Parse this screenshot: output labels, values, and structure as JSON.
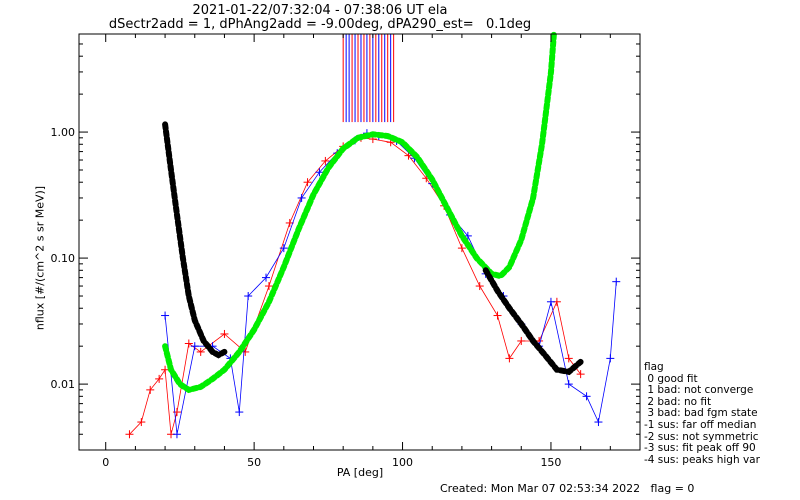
{
  "title_line1": "2021-01-22/07:32:04 - 07:38:06 UT ela",
  "title_line2": "dSectr2add = 1, dPhAng2add = -9.00deg, dPA290_est=   0.1deg",
  "footer": "Created: Mon Mar 07 02:53:34 2022   flag = 0",
  "legend": {
    "title": "flag",
    "items": [
      " 0 good fit",
      " 1 bad: not converge",
      " 2 bad: no fit",
      " 3 bad: bad fgm state",
      "-1 sus: far off median",
      "-2 sus: not symmetric",
      "-3 sus: fit peak off 90",
      "-4 sus: peaks high var"
    ]
  },
  "colors": {
    "series_a": "#ff0000",
    "series_b": "#0000ff",
    "fit_green": "#00ee00",
    "fit_black": "#000000"
  },
  "chart_data": {
    "type": "line",
    "xlabel": "PA [deg]",
    "ylabel": "nflux [#/(cm^2 s sr MeV)]",
    "xlim": [
      -9,
      180
    ],
    "ylim": [
      0.003,
      6.0
    ],
    "yscale": "log",
    "grid": false,
    "xticks": [
      {
        "value": 0,
        "label": "0"
      },
      {
        "value": 50,
        "label": "50"
      },
      {
        "value": 100,
        "label": "100"
      },
      {
        "value": 150,
        "label": "150"
      }
    ],
    "yticks": [
      {
        "value": 0.01,
        "label": "0.01"
      },
      {
        "value": 0.1,
        "label": "0.10"
      },
      {
        "value": 1.0,
        "label": "1.00"
      }
    ],
    "series": [
      {
        "color": "red",
        "points": [
          [
            8,
            0.004
          ],
          [
            12,
            0.005
          ],
          [
            15,
            0.009
          ],
          [
            18,
            0.011
          ],
          [
            20,
            0.013
          ],
          [
            22,
            0.004
          ],
          [
            24,
            0.006
          ],
          [
            28,
            0.021
          ],
          [
            32,
            0.018
          ],
          [
            40,
            0.025
          ],
          [
            47,
            0.018
          ],
          [
            55,
            0.06
          ],
          [
            62,
            0.19
          ],
          [
            68,
            0.4
          ],
          [
            74,
            0.59
          ],
          [
            80,
            0.77
          ],
          [
            86,
            0.9
          ],
          [
            90,
            0.88
          ],
          [
            96,
            0.83
          ],
          [
            102,
            0.65
          ],
          [
            108,
            0.43
          ],
          [
            114,
            0.26
          ],
          [
            120,
            0.12
          ],
          [
            126,
            0.06
          ],
          [
            132,
            0.035
          ],
          [
            136,
            0.016
          ],
          [
            140,
            0.022
          ],
          [
            146,
            0.022
          ],
          [
            152,
            0.045
          ],
          [
            156,
            0.016
          ],
          [
            160,
            0.012
          ]
        ]
      },
      {
        "color": "blue",
        "points": [
          [
            20,
            0.035
          ],
          [
            24,
            0.004
          ],
          [
            30,
            0.02
          ],
          [
            36,
            0.02
          ],
          [
            42,
            0.016
          ],
          [
            45,
            0.006
          ],
          [
            48,
            0.05
          ],
          [
            54,
            0.07
          ],
          [
            60,
            0.12
          ],
          [
            66,
            0.3
          ],
          [
            72,
            0.48
          ],
          [
            78,
            0.68
          ],
          [
            84,
            0.86
          ],
          [
            88,
            0.98
          ],
          [
            92,
            0.93
          ],
          [
            98,
            0.85
          ],
          [
            104,
            0.62
          ],
          [
            110,
            0.39
          ],
          [
            116,
            0.22
          ],
          [
            122,
            0.15
          ],
          [
            128,
            0.075
          ],
          [
            134,
            0.05
          ],
          [
            140,
            0.03
          ],
          [
            146,
            0.02
          ],
          [
            150,
            0.045
          ],
          [
            156,
            0.01
          ],
          [
            162,
            0.008
          ],
          [
            166,
            0.005
          ],
          [
            170,
            0.016
          ],
          [
            172,
            0.065
          ]
        ]
      },
      {
        "color": "green",
        "name": "fit",
        "points": [
          [
            20,
            0.02
          ],
          [
            22,
            0.013
          ],
          [
            25,
            0.01
          ],
          [
            28,
            0.009
          ],
          [
            32,
            0.0095
          ],
          [
            36,
            0.011
          ],
          [
            40,
            0.013
          ],
          [
            45,
            0.018
          ],
          [
            50,
            0.027
          ],
          [
            55,
            0.045
          ],
          [
            60,
            0.085
          ],
          [
            65,
            0.17
          ],
          [
            70,
            0.32
          ],
          [
            75,
            0.52
          ],
          [
            80,
            0.74
          ],
          [
            85,
            0.9
          ],
          [
            90,
            0.96
          ],
          [
            95,
            0.93
          ],
          [
            100,
            0.83
          ],
          [
            105,
            0.63
          ],
          [
            110,
            0.42
          ],
          [
            115,
            0.25
          ],
          [
            120,
            0.15
          ],
          [
            125,
            0.1
          ],
          [
            130,
            0.075
          ],
          [
            133,
            0.072
          ],
          [
            136,
            0.085
          ],
          [
            140,
            0.14
          ],
          [
            144,
            0.3
          ],
          [
            147,
            0.8
          ],
          [
            150,
            3.0
          ],
          [
            151,
            6.0
          ]
        ]
      },
      {
        "color": "black",
        "name": "fit",
        "points": [
          [
            20,
            1.15
          ],
          [
            22,
            0.5
          ],
          [
            24,
            0.22
          ],
          [
            26,
            0.1
          ],
          [
            28,
            0.05
          ],
          [
            30,
            0.032
          ],
          [
            33,
            0.022
          ],
          [
            36,
            0.018
          ],
          [
            38,
            0.017
          ],
          [
            40,
            0.018
          ]
        ]
      },
      {
        "color": "black",
        "name": "fit",
        "points": [
          [
            128,
            0.08
          ],
          [
            132,
            0.055
          ],
          [
            136,
            0.04
          ],
          [
            140,
            0.03
          ],
          [
            144,
            0.022
          ],
          [
            148,
            0.017
          ],
          [
            152,
            0.013
          ],
          [
            156,
            0.0125
          ],
          [
            160,
            0.015
          ]
        ]
      }
    ],
    "vertical_markers": {
      "pa_values": [
        80,
        81,
        82,
        83,
        84,
        85,
        86,
        87,
        88,
        89,
        90,
        91,
        92,
        93,
        94,
        95,
        96,
        97
      ],
      "colors": [
        "red",
        "blue",
        "blue",
        "red",
        "blue",
        "red",
        "blue",
        "red",
        "blue",
        "red",
        "blue",
        "red",
        "blue",
        "red",
        "blue",
        "red",
        "blue",
        "red"
      ],
      "y_from": 1.2,
      "y_to": 6.0
    }
  }
}
